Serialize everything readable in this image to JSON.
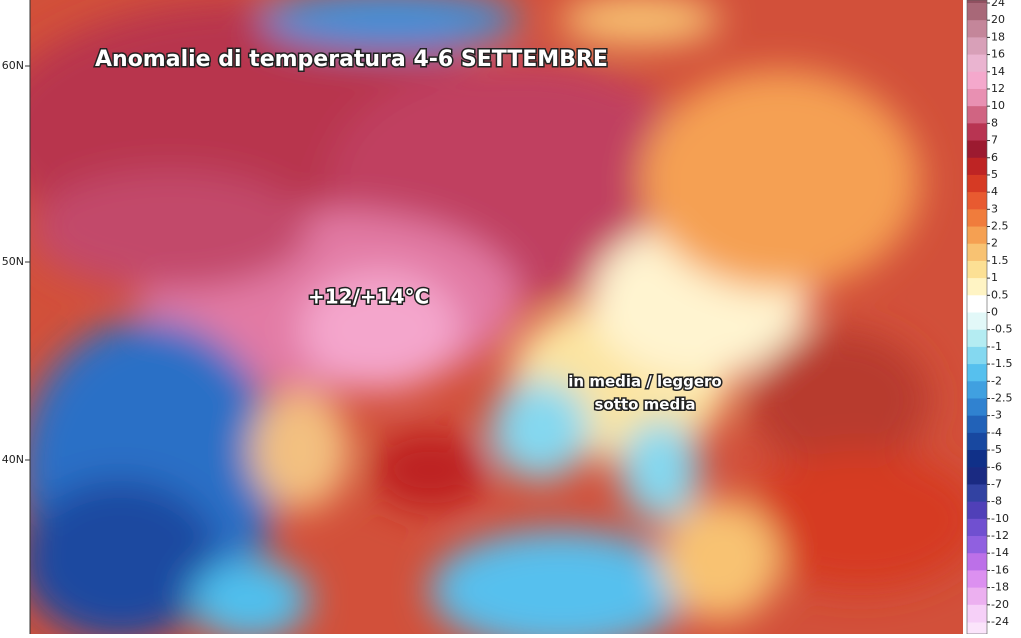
{
  "map": {
    "title": "Anomalie di temperatura 4-6 SETTEMBRE",
    "annotations": [
      "+12/+14°C",
      "in media / leggero",
      "sotto media"
    ],
    "latitude_labels": [
      "60N",
      "50N",
      "40N"
    ],
    "colorbar": {
      "labels": [
        "24",
        "20",
        "18",
        "16",
        "14",
        "12",
        "10",
        "8",
        "7",
        "6",
        "5",
        "4",
        "3",
        "2.5",
        "2",
        "1.5",
        "1",
        "0.5",
        "0",
        "-0.5",
        "-1",
        "-1.5",
        "-2",
        "-2.5",
        "-3",
        "-4",
        "-5",
        "-6",
        "-7",
        "-8",
        "-10",
        "-12",
        "-14",
        "-16",
        "-18",
        "-20",
        "-24"
      ],
      "colors": [
        "#a86878",
        "#c4869a",
        "#d8a0b8",
        "#eab4d0",
        "#f4a8cc",
        "#e890b2",
        "#d06482",
        "#b83452",
        "#9c1a30",
        "#be2424",
        "#d63a24",
        "#e85a30",
        "#f07c3c",
        "#f5a052",
        "#f8c272",
        "#fce094",
        "#fff4c4",
        "#ffffff",
        "#e2f8f8",
        "#b4ecf2",
        "#84d8f0",
        "#56c0ee",
        "#40a0e0",
        "#3082d0",
        "#2262b8",
        "#1848a0",
        "#103088",
        "#1a2a82",
        "#3242a2",
        "#5040b8",
        "#7050d0",
        "#9060e0",
        "#bc70e8",
        "#dc90f0",
        "#ecb0f0",
        "#f6d0f8"
      ]
    }
  }
}
